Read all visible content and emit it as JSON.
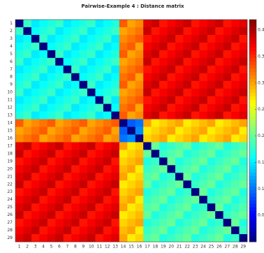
{
  "chart_data": {
    "type": "heatmap",
    "title": "Pairwise-Example 4 :     Distance matrix",
    "colormap": "jet",
    "categories": [
      1,
      2,
      3,
      4,
      5,
      6,
      7,
      8,
      9,
      10,
      11,
      12,
      13,
      14,
      15,
      16,
      17,
      18,
      19,
      20,
      21,
      22,
      23,
      24,
      25,
      26,
      27,
      28,
      29
    ],
    "zlim": [
      0,
      0.42
    ],
    "zticks": [
      0.05,
      0.1,
      0.15,
      0.2,
      0.25,
      0.3,
      0.35,
      0.4
    ],
    "values": [
      [
        0,
        0.18,
        0.15,
        0.16,
        0.17,
        0.18,
        0.15,
        0.16,
        0.17,
        0.18,
        0.15,
        0.16,
        0.17,
        0.33,
        0.3,
        0.31,
        0.38,
        0.39,
        0.36,
        0.37,
        0.38,
        0.39,
        0.36,
        0.37,
        0.38,
        0.39,
        0.36,
        0.37,
        0.38
      ],
      [
        0.18,
        0,
        0.16,
        0.17,
        0.18,
        0.15,
        0.16,
        0.17,
        0.18,
        0.15,
        0.16,
        0.17,
        0.18,
        0.3,
        0.31,
        0.32,
        0.39,
        0.36,
        0.37,
        0.38,
        0.39,
        0.36,
        0.37,
        0.38,
        0.39,
        0.36,
        0.37,
        0.38,
        0.39
      ],
      [
        0.15,
        0.16,
        0,
        0.18,
        0.15,
        0.16,
        0.17,
        0.18,
        0.15,
        0.16,
        0.17,
        0.18,
        0.15,
        0.31,
        0.32,
        0.33,
        0.36,
        0.37,
        0.38,
        0.39,
        0.36,
        0.37,
        0.38,
        0.39,
        0.36,
        0.37,
        0.38,
        0.39,
        0.36
      ],
      [
        0.16,
        0.17,
        0.18,
        0,
        0.16,
        0.17,
        0.18,
        0.15,
        0.16,
        0.17,
        0.18,
        0.15,
        0.16,
        0.32,
        0.33,
        0.3,
        0.37,
        0.38,
        0.39,
        0.36,
        0.37,
        0.38,
        0.39,
        0.36,
        0.37,
        0.38,
        0.39,
        0.36,
        0.37
      ],
      [
        0.17,
        0.18,
        0.15,
        0.16,
        0,
        0.18,
        0.15,
        0.16,
        0.17,
        0.18,
        0.15,
        0.16,
        0.17,
        0.33,
        0.3,
        0.31,
        0.38,
        0.39,
        0.36,
        0.37,
        0.38,
        0.39,
        0.36,
        0.37,
        0.38,
        0.39,
        0.36,
        0.37,
        0.38
      ],
      [
        0.18,
        0.15,
        0.16,
        0.17,
        0.18,
        0,
        0.16,
        0.17,
        0.18,
        0.15,
        0.16,
        0.17,
        0.18,
        0.3,
        0.31,
        0.32,
        0.39,
        0.36,
        0.37,
        0.38,
        0.39,
        0.36,
        0.37,
        0.38,
        0.39,
        0.36,
        0.37,
        0.38,
        0.39
      ],
      [
        0.15,
        0.16,
        0.17,
        0.18,
        0.15,
        0.16,
        0,
        0.18,
        0.15,
        0.16,
        0.17,
        0.18,
        0.15,
        0.31,
        0.32,
        0.33,
        0.36,
        0.37,
        0.38,
        0.39,
        0.36,
        0.37,
        0.38,
        0.39,
        0.36,
        0.37,
        0.38,
        0.39,
        0.36
      ],
      [
        0.16,
        0.17,
        0.18,
        0.15,
        0.16,
        0.17,
        0.18,
        0,
        0.16,
        0.17,
        0.18,
        0.15,
        0.16,
        0.32,
        0.33,
        0.3,
        0.37,
        0.38,
        0.39,
        0.36,
        0.37,
        0.38,
        0.39,
        0.36,
        0.37,
        0.38,
        0.39,
        0.36,
        0.37
      ],
      [
        0.17,
        0.18,
        0.15,
        0.16,
        0.17,
        0.18,
        0.15,
        0.16,
        0,
        0.18,
        0.15,
        0.16,
        0.17,
        0.33,
        0.3,
        0.31,
        0.38,
        0.39,
        0.36,
        0.37,
        0.38,
        0.39,
        0.36,
        0.37,
        0.38,
        0.39,
        0.36,
        0.37,
        0.38
      ],
      [
        0.18,
        0.15,
        0.16,
        0.17,
        0.18,
        0.15,
        0.16,
        0.17,
        0.18,
        0,
        0.16,
        0.17,
        0.18,
        0.3,
        0.31,
        0.32,
        0.39,
        0.36,
        0.37,
        0.38,
        0.39,
        0.36,
        0.37,
        0.38,
        0.39,
        0.36,
        0.37,
        0.38,
        0.39
      ],
      [
        0.15,
        0.16,
        0.17,
        0.18,
        0.15,
        0.16,
        0.17,
        0.18,
        0.15,
        0.16,
        0,
        0.18,
        0.15,
        0.31,
        0.32,
        0.33,
        0.36,
        0.37,
        0.38,
        0.39,
        0.36,
        0.37,
        0.38,
        0.39,
        0.36,
        0.37,
        0.38,
        0.39,
        0.36
      ],
      [
        0.16,
        0.17,
        0.18,
        0.15,
        0.16,
        0.17,
        0.18,
        0.15,
        0.16,
        0.17,
        0.18,
        0,
        0.16,
        0.32,
        0.33,
        0.3,
        0.37,
        0.38,
        0.39,
        0.36,
        0.37,
        0.38,
        0.39,
        0.36,
        0.37,
        0.38,
        0.39,
        0.36,
        0.37
      ],
      [
        0.17,
        0.18,
        0.15,
        0.16,
        0.17,
        0.18,
        0.15,
        0.16,
        0.17,
        0.18,
        0.15,
        0.16,
        0,
        0.33,
        0.3,
        0.31,
        0.38,
        0.39,
        0.36,
        0.37,
        0.38,
        0.39,
        0.36,
        0.37,
        0.38,
        0.39,
        0.36,
        0.37,
        0.38
      ],
      [
        0.33,
        0.3,
        0.31,
        0.32,
        0.33,
        0.3,
        0.31,
        0.32,
        0.33,
        0.3,
        0.31,
        0.32,
        0.33,
        0,
        0.09,
        0.1,
        0.3,
        0.27,
        0.28,
        0.29,
        0.3,
        0.27,
        0.28,
        0.29,
        0.3,
        0.27,
        0.28,
        0.29,
        0.3
      ],
      [
        0.3,
        0.31,
        0.32,
        0.33,
        0.3,
        0.31,
        0.32,
        0.33,
        0.3,
        0.31,
        0.32,
        0.33,
        0.3,
        0.09,
        0,
        0.11,
        0.27,
        0.28,
        0.29,
        0.3,
        0.27,
        0.28,
        0.29,
        0.3,
        0.27,
        0.28,
        0.29,
        0.3,
        0.27
      ],
      [
        0.31,
        0.32,
        0.33,
        0.3,
        0.31,
        0.32,
        0.33,
        0.3,
        0.31,
        0.32,
        0.33,
        0.3,
        0.31,
        0.1,
        0.11,
        0,
        0.28,
        0.29,
        0.3,
        0.27,
        0.28,
        0.29,
        0.3,
        0.27,
        0.28,
        0.29,
        0.3,
        0.27,
        0.28
      ],
      [
        0.38,
        0.39,
        0.36,
        0.37,
        0.38,
        0.39,
        0.36,
        0.37,
        0.38,
        0.39,
        0.36,
        0.37,
        0.38,
        0.3,
        0.27,
        0.28,
        0,
        0.2,
        0.17,
        0.18,
        0.19,
        0.2,
        0.17,
        0.18,
        0.19,
        0.2,
        0.17,
        0.18,
        0.19
      ],
      [
        0.39,
        0.36,
        0.37,
        0.38,
        0.39,
        0.36,
        0.37,
        0.38,
        0.39,
        0.36,
        0.37,
        0.38,
        0.39,
        0.27,
        0.28,
        0.29,
        0.2,
        0,
        0.18,
        0.19,
        0.2,
        0.17,
        0.18,
        0.19,
        0.2,
        0.17,
        0.18,
        0.19,
        0.2
      ],
      [
        0.36,
        0.37,
        0.38,
        0.39,
        0.36,
        0.37,
        0.38,
        0.39,
        0.36,
        0.37,
        0.38,
        0.39,
        0.36,
        0.28,
        0.29,
        0.3,
        0.17,
        0.18,
        0,
        0.2,
        0.17,
        0.18,
        0.19,
        0.2,
        0.17,
        0.18,
        0.19,
        0.2,
        0.17
      ],
      [
        0.37,
        0.38,
        0.39,
        0.36,
        0.37,
        0.38,
        0.39,
        0.36,
        0.37,
        0.38,
        0.39,
        0.36,
        0.37,
        0.29,
        0.3,
        0.27,
        0.18,
        0.19,
        0.2,
        0,
        0.18,
        0.19,
        0.2,
        0.17,
        0.18,
        0.19,
        0.2,
        0.17,
        0.18
      ],
      [
        0.38,
        0.39,
        0.36,
        0.37,
        0.38,
        0.39,
        0.36,
        0.37,
        0.38,
        0.39,
        0.36,
        0.37,
        0.38,
        0.3,
        0.27,
        0.28,
        0.19,
        0.2,
        0.17,
        0.18,
        0,
        0.2,
        0.17,
        0.18,
        0.19,
        0.2,
        0.17,
        0.18,
        0.19
      ],
      [
        0.39,
        0.36,
        0.37,
        0.38,
        0.39,
        0.36,
        0.37,
        0.38,
        0.39,
        0.36,
        0.37,
        0.38,
        0.39,
        0.27,
        0.28,
        0.29,
        0.2,
        0.17,
        0.18,
        0.19,
        0.2,
        0,
        0.18,
        0.19,
        0.2,
        0.17,
        0.18,
        0.19,
        0.2
      ],
      [
        0.36,
        0.37,
        0.38,
        0.39,
        0.36,
        0.37,
        0.38,
        0.39,
        0.36,
        0.37,
        0.38,
        0.39,
        0.36,
        0.28,
        0.29,
        0.3,
        0.17,
        0.18,
        0.19,
        0.2,
        0.17,
        0.18,
        0,
        0.2,
        0.17,
        0.18,
        0.19,
        0.2,
        0.17
      ],
      [
        0.37,
        0.38,
        0.39,
        0.36,
        0.37,
        0.38,
        0.39,
        0.36,
        0.37,
        0.38,
        0.39,
        0.36,
        0.37,
        0.29,
        0.3,
        0.27,
        0.18,
        0.19,
        0.2,
        0.17,
        0.18,
        0.19,
        0.2,
        0,
        0.18,
        0.19,
        0.2,
        0.17,
        0.18
      ],
      [
        0.38,
        0.39,
        0.36,
        0.37,
        0.38,
        0.39,
        0.36,
        0.37,
        0.38,
        0.39,
        0.36,
        0.37,
        0.38,
        0.3,
        0.27,
        0.28,
        0.19,
        0.2,
        0.17,
        0.18,
        0.19,
        0.2,
        0.17,
        0.18,
        0,
        0.2,
        0.17,
        0.18,
        0.19
      ],
      [
        0.39,
        0.36,
        0.37,
        0.38,
        0.39,
        0.36,
        0.37,
        0.38,
        0.39,
        0.36,
        0.37,
        0.38,
        0.39,
        0.27,
        0.28,
        0.29,
        0.2,
        0.17,
        0.18,
        0.19,
        0.2,
        0.17,
        0.18,
        0.19,
        0.2,
        0,
        0.18,
        0.19,
        0.2
      ],
      [
        0.36,
        0.37,
        0.38,
        0.39,
        0.36,
        0.37,
        0.38,
        0.39,
        0.36,
        0.37,
        0.38,
        0.39,
        0.36,
        0.28,
        0.29,
        0.3,
        0.17,
        0.18,
        0.19,
        0.2,
        0.17,
        0.18,
        0.19,
        0.2,
        0.17,
        0.18,
        0,
        0.2,
        0.17
      ],
      [
        0.37,
        0.38,
        0.39,
        0.36,
        0.37,
        0.38,
        0.39,
        0.36,
        0.37,
        0.38,
        0.39,
        0.36,
        0.37,
        0.29,
        0.3,
        0.27,
        0.18,
        0.19,
        0.2,
        0.17,
        0.18,
        0.19,
        0.2,
        0.17,
        0.18,
        0.19,
        0.2,
        0,
        0.18
      ],
      [
        0.38,
        0.39,
        0.36,
        0.37,
        0.38,
        0.39,
        0.36,
        0.37,
        0.38,
        0.39,
        0.36,
        0.37,
        0.38,
        0.3,
        0.27,
        0.28,
        0.19,
        0.2,
        0.17,
        0.18,
        0.19,
        0.2,
        0.17,
        0.18,
        0.19,
        0.2,
        0.17,
        0.18,
        0
      ]
    ]
  }
}
